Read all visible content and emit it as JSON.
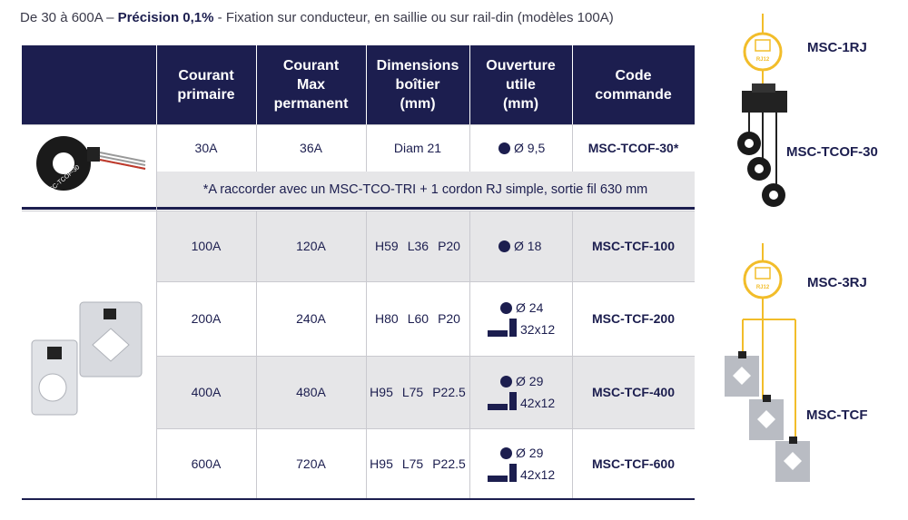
{
  "intro": {
    "prefix": "De 30 à 600A – ",
    "bold": "Précision 0,1%",
    "suffix": " - Fixation sur conducteur, en saillie ou sur rail-din (modèles 100A)"
  },
  "table": {
    "headers": [
      [
        "Courant",
        "primaire"
      ],
      [
        "Courant",
        "Max",
        "permanent"
      ],
      [
        "Dimensions",
        "boîtier",
        "(mm)"
      ],
      [
        "Ouverture",
        "utile",
        "(mm)"
      ],
      [
        "Code",
        "commande"
      ]
    ],
    "rows": [
      {
        "current": "30A",
        "max": "36A",
        "dimensions": [
          "Diam 21"
        ],
        "opening": {
          "diameter": "Ø 9,5"
        },
        "code": "MSC-TCOF-30*"
      },
      {
        "current": "100A",
        "max": "120A",
        "dimensions": [
          "H59",
          "L36",
          "P20"
        ],
        "opening": {
          "diameter": "Ø 18"
        },
        "code": "MSC-TCF-100"
      },
      {
        "current": "200A",
        "max": "240A",
        "dimensions": [
          "H80",
          "L60",
          "P20"
        ],
        "opening": {
          "diameter": "Ø 24",
          "rect": "32x12"
        },
        "code": "MSC-TCF-200"
      },
      {
        "current": "400A",
        "max": "480A",
        "dimensions": [
          "H95",
          "L75",
          "P22.5"
        ],
        "opening": {
          "diameter": "Ø 29",
          "rect": "42x12"
        },
        "code": "MSC-TCF-400"
      },
      {
        "current": "600A",
        "max": "720A",
        "dimensions": [
          "H95",
          "L75",
          "P22.5"
        ],
        "opening": {
          "diameter": "Ø 29",
          "rect": "42x12"
        },
        "code": "MSC-TCF-600"
      }
    ],
    "note": "*A raccorder avec un MSC-TCO-TRI + 1 cordon RJ simple, sortie fil 630 mm",
    "product_label": "MSC-TCOF-30"
  },
  "diagram": {
    "connector": "RJ12",
    "top_module": "MSC-1RJ",
    "top_sensor": "MSC-TCOF-30",
    "bottom_module": "MSC-3RJ",
    "bottom_sensor": "MSC-TCF"
  }
}
